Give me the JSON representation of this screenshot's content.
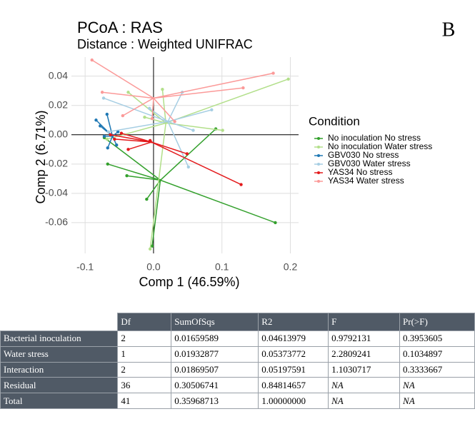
{
  "chart_data": {
    "type": "scatter",
    "title": "PCoA : RAS",
    "subtitle": "Distance : Weighted UNIFRAC",
    "panel_label": "B",
    "x_label": "Comp 1 (46.59%)",
    "y_label": "Comp 2 (6.71%)",
    "xlim": [
      -0.12,
      0.212
    ],
    "ylim": [
      -0.081,
      0.053
    ],
    "xticks": [
      -0.1,
      {
        "value": 0,
        "label": "0.0"
      },
      0.1,
      0.2
    ],
    "yticks": [
      {
        "value": 0.04,
        "label": "0.04"
      },
      {
        "value": 0.02,
        "label": "0.02"
      },
      {
        "value": 0,
        "label": "0.00"
      },
      {
        "value": -0.02,
        "label": "-0.02"
      },
      {
        "value": -0.04,
        "label": "-0.04"
      },
      {
        "value": -0.06,
        "label": "-0.06"
      }
    ],
    "grid": true,
    "reference_lines": {
      "x": 0,
      "y": 0
    },
    "legend_title": "Condition",
    "legend_position": "right",
    "series": [
      {
        "name": "No inoculation No stress",
        "color": "#33a02c",
        "center": [
          0.01,
          -0.031
        ],
        "x": [
          0.091,
          0.178,
          -0.067,
          -0.039,
          -0.01,
          -0.002,
          -0.072
        ],
        "y": [
          0.004,
          -0.06,
          -0.02,
          -0.028,
          -0.044,
          -0.076,
          -0.002
        ]
      },
      {
        "name": "No inoculation Water stress",
        "color": "#b2df8a",
        "center": [
          0.018,
          0.008
        ],
        "x": [
          0.197,
          0.101,
          -0.037,
          0.013,
          -0.005,
          -0.068,
          -0.013
        ],
        "y": [
          0.038,
          0.003,
          0.029,
          0.031,
          -0.078,
          -0.003,
          0.012
        ]
      },
      {
        "name": "GBV030 No stress",
        "color": "#1f78b4",
        "center": [
          -0.06,
          -0.001
        ],
        "x": [
          -0.084,
          -0.068,
          -0.072,
          -0.067,
          -0.054,
          -0.078,
          -0.052
        ],
        "y": [
          0.01,
          0.014,
          -0.001,
          -0.009,
          -0.007,
          0.006,
          0.002
        ]
      },
      {
        "name": "GBV030 Water stress",
        "color": "#a6cee3",
        "center": [
          0.021,
          0.009
        ],
        "x": [
          0.085,
          0.042,
          0.058,
          0.051,
          -0.073,
          -0.006,
          -0.066
        ],
        "y": [
          0.017,
          0.029,
          0.003,
          -0.022,
          0.025,
          0.018,
          0.002
        ]
      },
      {
        "name": "YAS34 No stress",
        "color": "#e31a1c",
        "center": [
          -0.003,
          -0.005
        ],
        "x": [
          0.128,
          0.049,
          -0.047,
          -0.063,
          -0.037,
          -0.005,
          -0.057
        ],
        "y": [
          -0.034,
          -0.013,
          0.001,
          0.0,
          -0.01,
          -0.004,
          -0.003
        ]
      },
      {
        "name": "YAS34 Water stress",
        "color": "#fb9a99",
        "center": [
          0.0,
          0.025
        ],
        "x": [
          -0.09,
          0.175,
          0.131,
          -0.075,
          -0.002,
          0.031,
          -0.045
        ],
        "y": [
          0.051,
          0.042,
          0.032,
          0.029,
          0.011,
          0.009,
          0.013
        ]
      }
    ]
  },
  "table": {
    "columns": [
      "Df",
      "SumOfSqs",
      "R2",
      "F",
      "Pr(>F)"
    ],
    "rows": [
      {
        "label": "Bacterial inoculation",
        "cells": [
          {
            "text": "2"
          },
          {
            "text": "0.01659589"
          },
          {
            "text": "0.04613979"
          },
          {
            "text": "0.9792131"
          },
          {
            "text": "0.3953605"
          }
        ]
      },
      {
        "label": "Water stress",
        "cells": [
          {
            "text": "1"
          },
          {
            "text": "0.01932877"
          },
          {
            "text": "0.05373772"
          },
          {
            "text": "2.2809241"
          },
          {
            "text": "0.1034897"
          }
        ]
      },
      {
        "label": "Interaction",
        "cells": [
          {
            "text": "2"
          },
          {
            "text": "0.01869507"
          },
          {
            "text": "0.05197591"
          },
          {
            "text": "1.1030717"
          },
          {
            "text": "0.3333667"
          }
        ]
      },
      {
        "label": "Residual",
        "cells": [
          {
            "text": "36"
          },
          {
            "text": "0.30506741"
          },
          {
            "text": "0.84814657"
          },
          {
            "text": "NA",
            "italic": true
          },
          {
            "text": "NA",
            "italic": true
          }
        ]
      },
      {
        "label": "Total",
        "cells": [
          {
            "text": "41"
          },
          {
            "text": "0.35968713"
          },
          {
            "text": "1.00000000"
          },
          {
            "text": "NA",
            "italic": true
          },
          {
            "text": "NA",
            "italic": true
          }
        ]
      }
    ]
  }
}
